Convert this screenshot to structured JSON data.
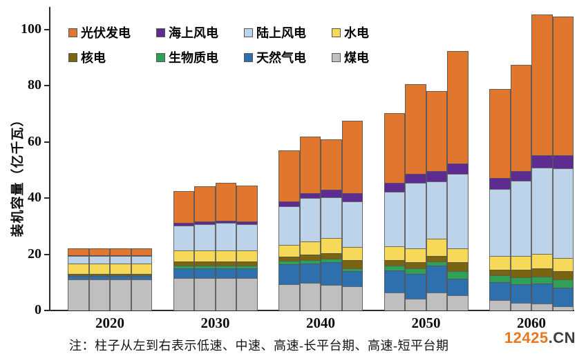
{
  "chart_data": {
    "type": "bar",
    "stacked": true,
    "title": "",
    "xlabel": "",
    "ylabel": "装机容量（亿千瓦）",
    "ylim": [
      0,
      100
    ],
    "yticks": [
      0,
      20,
      40,
      60,
      80,
      100
    ],
    "grid": false,
    "legend_position": "top-left-inside",
    "categories": [
      "2020",
      "2030",
      "2040",
      "2050",
      "2060"
    ],
    "scenarios_per_category": [
      "低速",
      "中速",
      "高速-长平台期",
      "高速-短平台期"
    ],
    "unit": "亿千瓦",
    "series_stack_order": "bottom-to-top",
    "series": [
      {
        "name": "煤电",
        "color": "#BFBFBF",
        "values": [
          [
            11.0,
            11.0,
            11.0,
            11.0
          ],
          [
            11.5,
            11.5,
            11.5,
            11.5
          ],
          [
            9.4,
            9.8,
            9.0,
            8.6
          ],
          [
            6.3,
            4.1,
            6.5,
            5.3
          ],
          [
            3.6,
            2.8,
            2.5,
            1.5
          ]
        ]
      },
      {
        "name": "天然气电",
        "color": "#2E6FAD",
        "values": [
          [
            1.2,
            1.2,
            1.2,
            1.2
          ],
          [
            3.5,
            3.5,
            3.5,
            3.5
          ],
          [
            7.0,
            7.0,
            8.2,
            5.3
          ],
          [
            8.0,
            9.0,
            9.4,
            6.1
          ],
          [
            6.6,
            6.6,
            7.0,
            6.6
          ]
        ]
      },
      {
        "name": "生物质电",
        "color": "#2FA055",
        "values": [
          [
            0.2,
            0.2,
            0.2,
            0.2
          ],
          [
            1.0,
            1.0,
            1.0,
            1.0
          ],
          [
            1.2,
            1.2,
            1.2,
            1.2
          ],
          [
            1.6,
            2.0,
            1.6,
            2.5
          ],
          [
            2.3,
            2.5,
            2.5,
            2.9
          ]
        ]
      },
      {
        "name": "核电",
        "color": "#7A6311",
        "values": [
          [
            0.5,
            0.5,
            0.5,
            0.5
          ],
          [
            1.5,
            1.5,
            1.5,
            1.5
          ],
          [
            1.6,
            2.0,
            2.0,
            2.9
          ],
          [
            2.0,
            2.0,
            2.0,
            3.3
          ],
          [
            2.0,
            2.5,
            2.9,
            2.9
          ]
        ]
      },
      {
        "name": "水电",
        "color": "#F7D959",
        "values": [
          [
            3.7,
            3.7,
            3.7,
            3.7
          ],
          [
            3.8,
            3.8,
            3.8,
            3.8
          ],
          [
            4.1,
            4.5,
            5.3,
            4.5
          ],
          [
            5.0,
            5.0,
            6.0,
            4.9
          ],
          [
            4.9,
            4.9,
            5.3,
            4.9
          ]
        ]
      },
      {
        "name": "陆上风电",
        "color": "#BDD3EA",
        "values": [
          [
            2.8,
            2.8,
            2.8,
            2.8
          ],
          [
            9.0,
            9.5,
            9.8,
            9.5
          ],
          [
            13.9,
            15.6,
            14.7,
            16.4
          ],
          [
            19.3,
            23.3,
            20.5,
            26.6
          ],
          [
            23.8,
            27.0,
            30.7,
            31.9
          ]
        ]
      },
      {
        "name": "海上风电",
        "color": "#5D2B92",
        "values": [
          [
            0.1,
            0.1,
            0.1,
            0.1
          ],
          [
            0.8,
            0.8,
            0.9,
            0.8
          ],
          [
            1.6,
            1.6,
            2.5,
            2.9
          ],
          [
            3.3,
            3.3,
            3.7,
            3.7
          ],
          [
            4.1,
            3.3,
            4.5,
            4.5
          ]
        ]
      },
      {
        "name": "光伏发电",
        "color": "#E1762F",
        "values": [
          [
            2.5,
            2.5,
            2.5,
            2.5
          ],
          [
            11.4,
            12.6,
            13.4,
            12.8
          ],
          [
            18.2,
            20.3,
            18.0,
            25.8
          ],
          [
            24.9,
            31.9,
            28.5,
            40.1
          ],
          [
            31.7,
            37.8,
            50.0,
            49.6
          ]
        ]
      }
    ],
    "legend_order": [
      "光伏发电",
      "海上风电",
      "陆上风电",
      "水电",
      "核电",
      "生物质电",
      "天然气电",
      "煤电"
    ]
  },
  "axis": {
    "ylabel": "装机容量（亿千瓦）",
    "ytick_labels": [
      "0",
      "20",
      "40",
      "60",
      "80",
      "100"
    ],
    "xtick_labels": [
      "2020",
      "2030",
      "2040",
      "2050",
      "2060"
    ]
  },
  "note": "注：柱子从左到右表示低速、中速、高速-长平台期、高速-短平台期",
  "watermark": {
    "number": "12425",
    "suffix": ".CN",
    "number_color": "#E87722",
    "suffix_color": "#3D3D3D"
  }
}
